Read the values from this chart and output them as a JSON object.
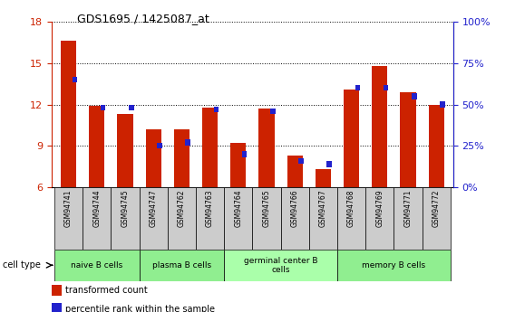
{
  "title": "GDS1695 / 1425087_at",
  "samples": [
    "GSM94741",
    "GSM94744",
    "GSM94745",
    "GSM94747",
    "GSM94762",
    "GSM94763",
    "GSM94764",
    "GSM94765",
    "GSM94766",
    "GSM94767",
    "GSM94768",
    "GSM94769",
    "GSM94771",
    "GSM94772"
  ],
  "transformed_count": [
    16.6,
    11.9,
    11.3,
    10.2,
    10.2,
    11.8,
    9.2,
    11.7,
    8.3,
    7.3,
    13.1,
    14.8,
    12.9,
    12.0
  ],
  "percentile_rank": [
    65,
    48,
    48,
    25,
    27,
    47,
    20,
    46,
    16,
    14,
    60,
    60,
    55,
    50
  ],
  "y_min": 6,
  "y_max": 18,
  "y_ticks": [
    6,
    9,
    12,
    15,
    18
  ],
  "right_y_ticks": [
    0,
    25,
    50,
    75,
    100
  ],
  "groups": [
    {
      "label": "naive B cells",
      "start": 0,
      "end": 2,
      "color": "#90EE90"
    },
    {
      "label": "plasma B cells",
      "start": 3,
      "end": 5,
      "color": "#90EE90"
    },
    {
      "label": "germinal center B\ncells",
      "start": 6,
      "end": 9,
      "color": "#AAFFAA"
    },
    {
      "label": "memory B cells",
      "start": 10,
      "end": 13,
      "color": "#90EE90"
    }
  ],
  "bar_color_red": "#CC2200",
  "bar_color_blue": "#2222CC",
  "tick_color_left": "#CC2200",
  "tick_color_right": "#2222CC",
  "grid_color": "#000000",
  "sample_box_color": "#CCCCCC"
}
